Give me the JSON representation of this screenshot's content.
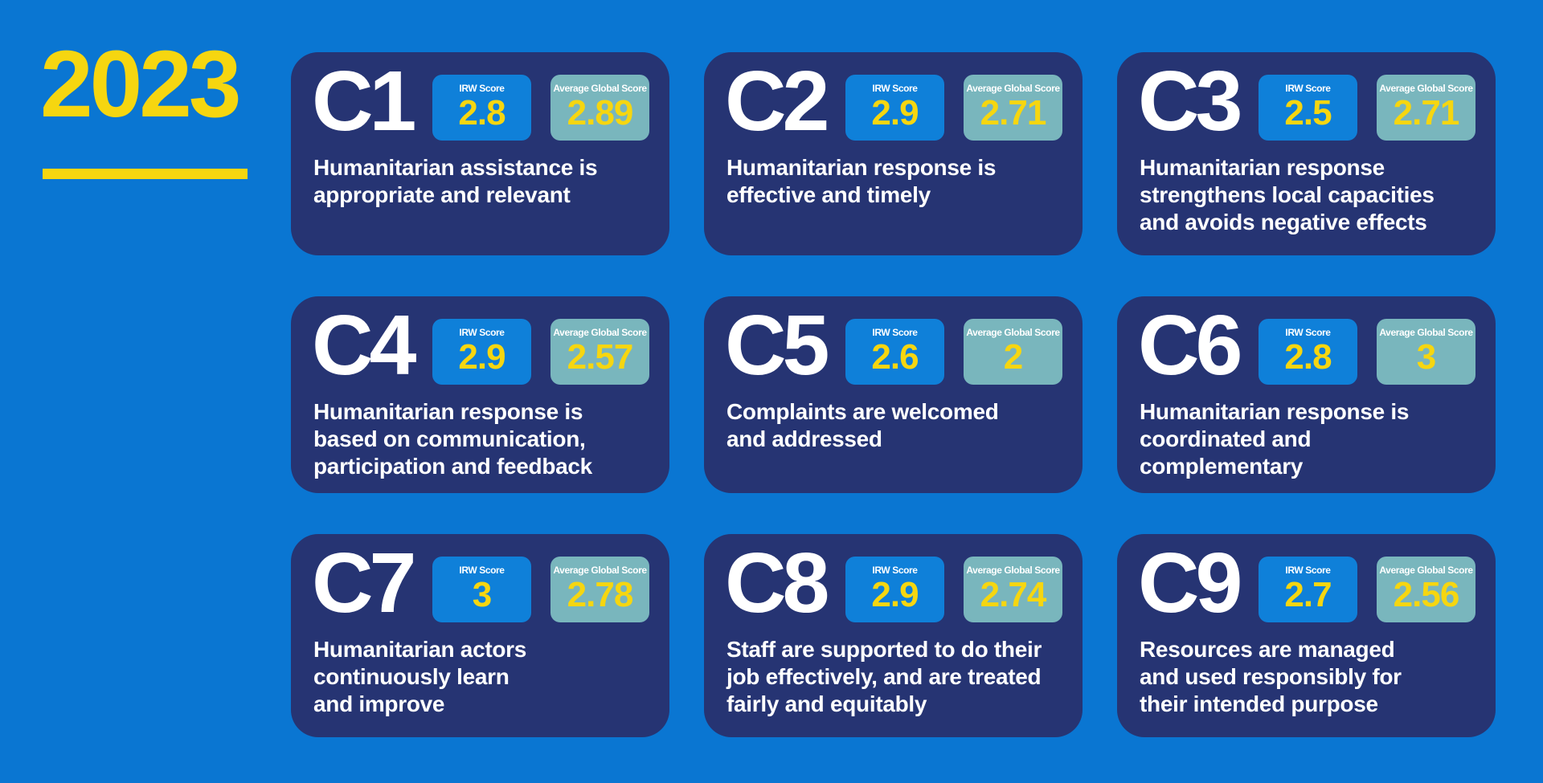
{
  "title": {
    "year": "2023"
  },
  "colors": {
    "background": "#0a76d2",
    "card": "#263473",
    "irw_badge": "#0f80d9",
    "global_badge": "#79b6bd",
    "accent_yellow": "#f6d610",
    "text_white": "#ffffff"
  },
  "badge_labels": {
    "irw": "IRW Score",
    "global": "Average Global Score"
  },
  "cards": [
    {
      "code": "C1",
      "irw": "2.8",
      "global": "2.89",
      "description": "Humanitarian assistance is\nappropriate and relevant"
    },
    {
      "code": "C2",
      "irw": "2.9",
      "global": "2.71",
      "description": "Humanitarian response is\neffective and timely"
    },
    {
      "code": "C3",
      "irw": "2.5",
      "global": "2.71",
      "description": "Humanitarian response\nstrengthens local capacities\nand avoids negative effects"
    },
    {
      "code": "C4",
      "irw": "2.9",
      "global": "2.57",
      "description": "Humanitarian response is\nbased on communication,\nparticipation and feedback"
    },
    {
      "code": "C5",
      "irw": "2.6",
      "global": "2",
      "description": "Complaints are welcomed\nand addressed"
    },
    {
      "code": "C6",
      "irw": "2.8",
      "global": "3",
      "description": "Humanitarian response is\ncoordinated and complementary"
    },
    {
      "code": "C7",
      "irw": "3",
      "global": "2.78",
      "description": "Humanitarian actors\ncontinuously learn\nand improve"
    },
    {
      "code": "C8",
      "irw": "2.9",
      "global": "2.74",
      "description": "Staff are supported to do their\njob effectively, and are treated\nfairly and equitably"
    },
    {
      "code": "C9",
      "irw": "2.7",
      "global": "2.56",
      "description": "Resources are managed\nand used responsibly for\ntheir intended purpose"
    }
  ],
  "chart_data": {
    "type": "table",
    "title": "2023",
    "categories": [
      "C1",
      "C2",
      "C3",
      "C4",
      "C5",
      "C6",
      "C7",
      "C8",
      "C9"
    ],
    "series": [
      {
        "name": "IRW Score",
        "values": [
          2.8,
          2.9,
          2.5,
          2.9,
          2.6,
          2.8,
          3,
          2.9,
          2.7
        ]
      },
      {
        "name": "Average Global Score",
        "values": [
          2.89,
          2.71,
          2.71,
          2.57,
          2,
          3,
          2.78,
          2.74,
          2.56
        ]
      }
    ],
    "value_range": [
      0,
      3
    ],
    "category_labels": [
      "Humanitarian assistance is appropriate and relevant",
      "Humanitarian response is effective and timely",
      "Humanitarian response strengthens local capacities and avoids negative effects",
      "Humanitarian response is based on communication, participation and feedback",
      "Complaints are welcomed and addressed",
      "Humanitarian response is coordinated and complementary",
      "Humanitarian actors continuously learn and improve",
      "Staff are supported to do their job effectively, and are treated fairly and equitably",
      "Resources are managed and used responsibly for their intended purpose"
    ]
  }
}
